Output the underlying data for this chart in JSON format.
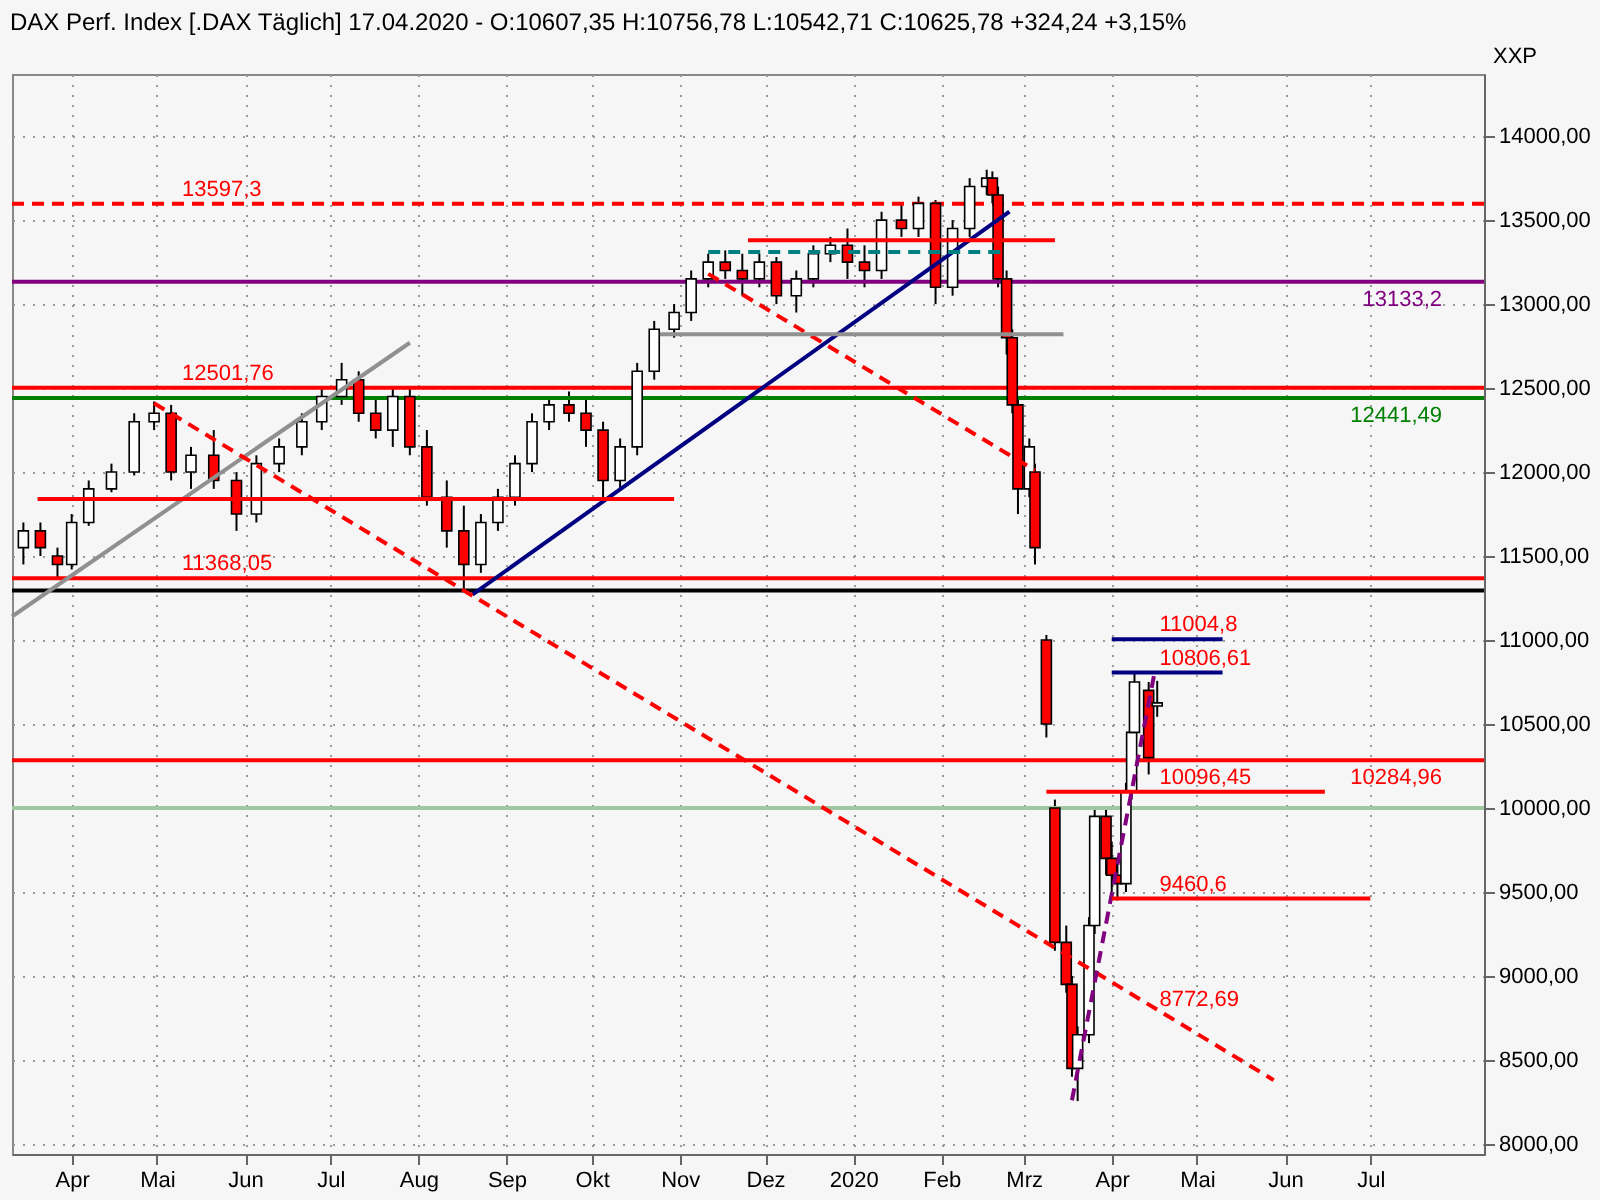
{
  "chart_data": {
    "type": "candlestick",
    "title": "DAX Perf. Index [.DAX  Täglich] 17.04.2020 - O:10607,35 H:10756,78 L:10542,71 C:10625,78 +324,24 +3,15%",
    "ylabel": "XXP",
    "x": [
      "2019-03-15",
      "2019-03-21",
      "2019-03-27",
      "2019-04-01",
      "2019-04-07",
      "2019-04-15",
      "2019-04-23",
      "2019-04-30",
      "2019-05-06",
      "2019-05-13",
      "2019-05-21",
      "2019-05-29",
      "2019-06-05",
      "2019-06-13",
      "2019-06-21",
      "2019-06-28",
      "2019-07-05",
      "2019-07-11",
      "2019-07-17",
      "2019-07-23",
      "2019-07-29",
      "2019-08-04",
      "2019-08-11",
      "2019-08-17",
      "2019-08-23",
      "2019-08-29",
      "2019-09-04",
      "2019-09-10",
      "2019-09-16",
      "2019-09-23",
      "2019-09-29",
      "2019-10-05",
      "2019-10-11",
      "2019-10-17",
      "2019-10-23",
      "2019-10-30",
      "2019-11-05",
      "2019-11-11",
      "2019-11-17",
      "2019-11-23",
      "2019-11-29",
      "2019-12-05",
      "2019-12-12",
      "2019-12-18",
      "2019-12-24",
      "2019-12-30",
      "2020-01-05",
      "2020-01-11",
      "2020-01-18",
      "2020-01-24",
      "2020-01-30",
      "2020-02-05",
      "2020-02-11",
      "2020-02-17",
      "2020-02-19",
      "2020-02-21",
      "2020-02-24",
      "2020-02-26",
      "2020-02-28",
      "2020-03-03",
      "2020-03-05",
      "2020-03-09",
      "2020-03-12",
      "2020-03-16",
      "2020-03-18",
      "2020-03-20",
      "2020-03-24",
      "2020-03-26",
      "2020-03-30",
      "2020-04-01",
      "2020-04-03",
      "2020-04-06",
      "2020-04-08",
      "2020-04-09",
      "2020-04-14",
      "2020-04-17"
    ],
    "ohlc": [
      [
        11550,
        11700,
        11450,
        11650
      ],
      [
        11650,
        11700,
        11500,
        11550
      ],
      [
        11500,
        11550,
        11370,
        11450
      ],
      [
        11450,
        11750,
        11420,
        11700
      ],
      [
        11700,
        11950,
        11680,
        11900
      ],
      [
        11900,
        12050,
        11880,
        12000
      ],
      [
        12000,
        12350,
        11980,
        12300
      ],
      [
        12300,
        12420,
        12250,
        12350
      ],
      [
        12350,
        12400,
        11950,
        12000
      ],
      [
        12000,
        12150,
        11900,
        12100
      ],
      [
        12100,
        12250,
        11900,
        11950
      ],
      [
        11950,
        12000,
        11650,
        11750
      ],
      [
        11750,
        12100,
        11700,
        12050
      ],
      [
        12050,
        12200,
        12000,
        12150
      ],
      [
        12150,
        12350,
        12100,
        12300
      ],
      [
        12300,
        12500,
        12250,
        12450
      ],
      [
        12450,
        12650,
        12400,
        12550
      ],
      [
        12550,
        12600,
        12300,
        12350
      ],
      [
        12350,
        12450,
        12200,
        12250
      ],
      [
        12250,
        12500,
        12150,
        12450
      ],
      [
        12450,
        12500,
        12100,
        12150
      ],
      [
        12150,
        12250,
        11800,
        11850
      ],
      [
        11850,
        11950,
        11550,
        11650
      ],
      [
        11650,
        11800,
        11300,
        11450
      ],
      [
        11450,
        11750,
        11400,
        11700
      ],
      [
        11700,
        11900,
        11650,
        11850
      ],
      [
        11850,
        12100,
        11800,
        12050
      ],
      [
        12050,
        12350,
        12000,
        12300
      ],
      [
        12300,
        12450,
        12250,
        12400
      ],
      [
        12400,
        12480,
        12300,
        12350
      ],
      [
        12350,
        12450,
        12150,
        12250
      ],
      [
        12250,
        12300,
        11850,
        11950
      ],
      [
        11950,
        12200,
        11900,
        12150
      ],
      [
        12150,
        12650,
        12100,
        12600
      ],
      [
        12600,
        12900,
        12550,
        12850
      ],
      [
        12850,
        13000,
        12800,
        12950
      ],
      [
        12950,
        13200,
        12900,
        13150
      ],
      [
        13150,
        13300,
        13100,
        13250
      ],
      [
        13250,
        13320,
        13150,
        13200
      ],
      [
        13200,
        13300,
        13050,
        13150
      ],
      [
        13150,
        13300,
        13100,
        13250
      ],
      [
        13250,
        13280,
        13000,
        13050
      ],
      [
        13050,
        13200,
        12950,
        13150
      ],
      [
        13150,
        13350,
        13100,
        13300
      ],
      [
        13300,
        13400,
        13250,
        13350
      ],
      [
        13350,
        13450,
        13150,
        13250
      ],
      [
        13250,
        13350,
        13100,
        13200
      ],
      [
        13200,
        13550,
        13150,
        13500
      ],
      [
        13500,
        13600,
        13400,
        13450
      ],
      [
        13450,
        13640,
        13400,
        13600
      ],
      [
        13600,
        13620,
        13000,
        13100
      ],
      [
        13100,
        13500,
        13050,
        13450
      ],
      [
        13450,
        13750,
        13400,
        13700
      ],
      [
        13700,
        13800,
        13650,
        13750
      ],
      [
        13750,
        13790,
        13600,
        13650
      ],
      [
        13650,
        13700,
        13100,
        13150
      ],
      [
        13150,
        13200,
        12700,
        12800
      ],
      [
        12800,
        12850,
        12350,
        12400
      ],
      [
        12400,
        12450,
        11750,
        11900
      ],
      [
        11900,
        12200,
        11850,
        12150
      ],
      [
        12000,
        12050,
        11450,
        11550
      ],
      [
        11000,
        11030,
        10420,
        10500
      ],
      [
        10000,
        10050,
        9150,
        9200
      ],
      [
        9200,
        9300,
        8900,
        8950
      ],
      [
        8950,
        9000,
        8400,
        8450
      ],
      [
        8450,
        8700,
        8255,
        8650
      ],
      [
        8650,
        9350,
        8600,
        9300
      ],
      [
        9300,
        10000,
        9250,
        9950
      ],
      [
        9950,
        10000,
        9600,
        9700
      ],
      [
        9700,
        9800,
        9500,
        9600
      ],
      [
        9600,
        9700,
        9450,
        9550
      ],
      [
        9550,
        10150,
        9500,
        10100
      ],
      [
        10100,
        10500,
        10050,
        10450
      ],
      [
        10450,
        10800,
        10400,
        10750
      ],
      [
        10700,
        10750,
        10200,
        10300
      ],
      [
        10607.35,
        10756.78,
        10542.71,
        10625.78
      ]
    ],
    "series": [
      {
        "type": "line",
        "color": "#909090",
        "line_style": "solid",
        "x": [
          "2019-03-11",
          "2019-07-29"
        ],
        "values": [
          11140,
          12770
        ]
      },
      {
        "type": "line",
        "color": "#000080",
        "line_style": "solid",
        "x": [
          "2019-08-20",
          "2020-02-25"
        ],
        "values": [
          11270,
          13550
        ]
      },
      {
        "type": "line",
        "color": "#ff0000",
        "line_style": "dashed",
        "x": [
          "2019-04-30",
          "2020-05-28"
        ],
        "values": [
          12410,
          8380
        ]
      },
      {
        "type": "line",
        "color": "#ff0000",
        "line_style": "dashed",
        "x": [
          "2019-11-11",
          "2020-03-05"
        ],
        "values": [
          13180,
          12010
        ]
      },
      {
        "type": "line",
        "color": "#800080",
        "line_style": "dashed",
        "x": [
          "2020-03-18",
          "2020-04-16"
        ],
        "values": [
          8260,
          10800
        ]
      },
      {
        "type": "line",
        "color": "#008080",
        "line_style": "dashed",
        "x": [
          "2019-11-11",
          "2020-02-24"
        ],
        "values": [
          13310,
          13310
        ]
      },
      {
        "type": "line",
        "color": "#ff0000",
        "line_style": "solid",
        "x": [
          "2019-11-25",
          "2020-03-12"
        ],
        "values": [
          13380,
          13380
        ]
      },
      {
        "type": "line",
        "color": "#ff0000",
        "line_style": "solid",
        "x": [
          "2019-03-20",
          "2019-10-30"
        ],
        "values": [
          11840,
          11840
        ]
      },
      {
        "type": "line",
        "color": "#909090",
        "line_style": "solid",
        "x": [
          "2019-10-25",
          "2020-03-15"
        ],
        "values": [
          12820,
          12820
        ]
      },
      {
        "type": "line",
        "color": "#000080",
        "line_style": "solid",
        "x": [
          "2020-04-01",
          "2020-05-10"
        ],
        "values": [
          11004.8,
          11004.8
        ]
      },
      {
        "type": "line",
        "color": "#000080",
        "line_style": "solid",
        "x": [
          "2020-04-01",
          "2020-05-10"
        ],
        "values": [
          10806.61,
          10806.61
        ]
      },
      {
        "type": "line",
        "color": "#ff0000",
        "line_style": "solid",
        "x": [
          "2020-03-09",
          "2020-06-15"
        ],
        "values": [
          10096.45,
          10096.45
        ]
      },
      {
        "type": "line",
        "color": "#ff0000",
        "line_style": "solid",
        "x": [
          "2020-04-01",
          "2020-07-01"
        ],
        "values": [
          9460.6,
          9460.6
        ]
      }
    ],
    "ref_lines": [
      {
        "axis": "y",
        "value": 13597.3,
        "label": "13597,3",
        "color": "#ff0000",
        "line_style": "dashed"
      },
      {
        "axis": "y",
        "value": 13133.2,
        "label": "13133,2",
        "color": "#800080",
        "line_style": "solid"
      },
      {
        "axis": "y",
        "value": 12501.76,
        "label": "12501,76",
        "color": "#ff0000",
        "line_style": "solid"
      },
      {
        "axis": "y",
        "value": 12441.49,
        "label": "12441,49",
        "color": "#008000",
        "line_style": "solid"
      },
      {
        "axis": "y",
        "value": 11368.05,
        "label": "11368,05",
        "color": "#ff0000",
        "line_style": "solid"
      },
      {
        "axis": "y",
        "value": 10284.96,
        "label": "10284,96",
        "color": "#ff0000",
        "line_style": "solid"
      },
      {
        "axis": "y",
        "value": 11295,
        "label": null,
        "color": "#000000",
        "line_style": "solid"
      },
      {
        "axis": "y",
        "value": 10000,
        "label": null,
        "color": "#a0c8a0",
        "line_style": "solid"
      }
    ],
    "annotations": [
      {
        "text": "11004,8",
        "x": "2020-04-15",
        "y": 11004.8
      },
      {
        "text": "10806,61",
        "x": "2020-04-15",
        "y": 10806.61
      },
      {
        "text": "10096,45",
        "x": "2020-04-15",
        "y": 10096.45
      },
      {
        "text": "9460,6",
        "x": "2020-04-15",
        "y": 9460.6
      },
      {
        "text": "8772,69",
        "x": "2020-04-15",
        "y": 8772.69
      }
    ],
    "xlim": [
      "2019-03-11",
      "2020-08-10"
    ],
    "xticks": [
      {
        "value": "2019-04-01",
        "label": "Apr"
      },
      {
        "value": "2019-05-01",
        "label": "Mai"
      },
      {
        "value": "2019-06-01",
        "label": "Jun"
      },
      {
        "value": "2019-07-01",
        "label": "Jul"
      },
      {
        "value": "2019-08-01",
        "label": "Aug"
      },
      {
        "value": "2019-09-01",
        "label": "Sep"
      },
      {
        "value": "2019-10-01",
        "label": "Okt"
      },
      {
        "value": "2019-11-01",
        "label": "Nov"
      },
      {
        "value": "2019-12-01",
        "label": "Dez"
      },
      {
        "value": "2020-01-01",
        "label": "2020"
      },
      {
        "value": "2020-02-01",
        "label": "Feb"
      },
      {
        "value": "2020-03-01",
        "label": "Mrz"
      },
      {
        "value": "2020-04-01",
        "label": "Apr"
      },
      {
        "value": "2020-05-01",
        "label": "Mai"
      },
      {
        "value": "2020-06-01",
        "label": "Jun"
      },
      {
        "value": "2020-07-01",
        "label": "Jul"
      }
    ],
    "ylim": [
      7940,
      14370
    ],
    "yticks": [
      {
        "value": 8000,
        "label": "8000,00"
      },
      {
        "value": 8500,
        "label": "8500,00"
      },
      {
        "value": 9000,
        "label": "9000,00"
      },
      {
        "value": 9500,
        "label": "9500,00"
      },
      {
        "value": 10000,
        "label": "10000,00"
      },
      {
        "value": 10500,
        "label": "10500,00"
      },
      {
        "value": 11000,
        "label": "11000,00"
      },
      {
        "value": 11500,
        "label": "11500,00"
      },
      {
        "value": 12000,
        "label": "12000,00"
      },
      {
        "value": 12500,
        "label": "12500,00"
      },
      {
        "value": 13000,
        "label": "13000,00"
      },
      {
        "value": 13500,
        "label": "13500,00"
      },
      {
        "value": 14000,
        "label": "14000,00"
      }
    ],
    "grid": true
  }
}
